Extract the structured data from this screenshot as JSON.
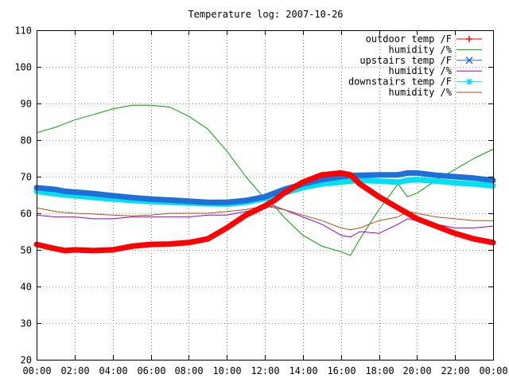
{
  "chart_data": {
    "type": "line",
    "title": "Temperature log: 2007-10-26",
    "xlabel": "",
    "ylabel": "",
    "ylim": [
      20,
      110
    ],
    "yticks": [
      20,
      30,
      40,
      50,
      60,
      70,
      80,
      90,
      100,
      110
    ],
    "xticks": [
      "00:00",
      "02:00",
      "04:00",
      "06:00",
      "08:00",
      "10:00",
      "12:00",
      "14:00",
      "16:00",
      "18:00",
      "20:00",
      "22:00",
      "00:00"
    ],
    "grid": true,
    "legend_position": "top-right",
    "x_hours": [
      0,
      1,
      1.5,
      2,
      3,
      4,
      5,
      6,
      7,
      8,
      9,
      10,
      11,
      12,
      12.5,
      13,
      14,
      15,
      16,
      16.5,
      17,
      18,
      19,
      19.5,
      20,
      21,
      22,
      23,
      24
    ],
    "series": [
      {
        "name": "outdoor temp /F",
        "color": "#ff0000",
        "marker": "plus",
        "thickness": "heavy",
        "values": [
          51.5,
          50.3,
          49.8,
          50.0,
          49.8,
          50.0,
          51.0,
          51.5,
          51.6,
          52.0,
          53.0,
          56.0,
          59.5,
          62.0,
          63.5,
          65.5,
          68.5,
          70.5,
          71.0,
          70.5,
          68.0,
          64.5,
          61.5,
          60.0,
          58.5,
          56.5,
          54.5,
          53.0,
          52.0
        ]
      },
      {
        "name": "humidity /%",
        "color": "#00a000",
        "marker": "none",
        "thickness": "thin",
        "values": [
          82,
          83.5,
          84.5,
          85.5,
          87,
          88.5,
          89.5,
          89.5,
          89,
          86.5,
          83,
          77,
          70,
          64,
          62,
          59,
          54,
          51,
          49.5,
          48.5,
          53,
          61,
          68,
          64.5,
          65.5,
          69,
          72,
          75,
          77.5
        ]
      },
      {
        "name": "upstairs temp /F",
        "color": "#1f6fd8",
        "marker": "cross",
        "thickness": "heavy",
        "values": [
          67,
          66.5,
          66,
          65.8,
          65.4,
          64.8,
          64.3,
          63.9,
          63.6,
          63.3,
          63.0,
          63.0,
          63.5,
          64.5,
          65.5,
          66.5,
          68.0,
          69.2,
          70.0,
          70.3,
          70.4,
          70.5,
          70.5,
          71.0,
          71.0,
          70.4,
          70.0,
          69.6,
          69.0
        ]
      },
      {
        "name": "humidity /%",
        "color": "#a000c0",
        "marker": "none",
        "thickness": "thin",
        "values": [
          59.5,
          59,
          59,
          59,
          58.5,
          58.5,
          59,
          59,
          59,
          59,
          59.5,
          59.5,
          60.5,
          61.5,
          62,
          61,
          59,
          57,
          54,
          53.5,
          55,
          54.5,
          57,
          58.5,
          58,
          57,
          56,
          56,
          56.5
        ]
      },
      {
        "name": "downstairs temp /F",
        "color": "#00e0f0",
        "marker": "star",
        "thickness": "heavy",
        "values": [
          66,
          65.3,
          65,
          64.8,
          64.3,
          63.9,
          63.5,
          63.2,
          63.0,
          62.8,
          62.6,
          62.5,
          63.0,
          64.0,
          64.5,
          65.5,
          67.0,
          68.0,
          68.5,
          68.8,
          69.0,
          68.8,
          68.5,
          69.0,
          69.2,
          68.8,
          68.3,
          68.0,
          67.5
        ]
      },
      {
        "name": "humidity /%",
        "color": "#b05010",
        "marker": "none",
        "thickness": "thin",
        "values": [
          61.5,
          60.5,
          60.2,
          60,
          59.8,
          59.5,
          59.3,
          59.5,
          60,
          60,
          60,
          60.5,
          61,
          62,
          61.5,
          61,
          59.5,
          58,
          56,
          55.5,
          56,
          58,
          59,
          60.5,
          60,
          59,
          58.5,
          58,
          58
        ]
      }
    ]
  }
}
